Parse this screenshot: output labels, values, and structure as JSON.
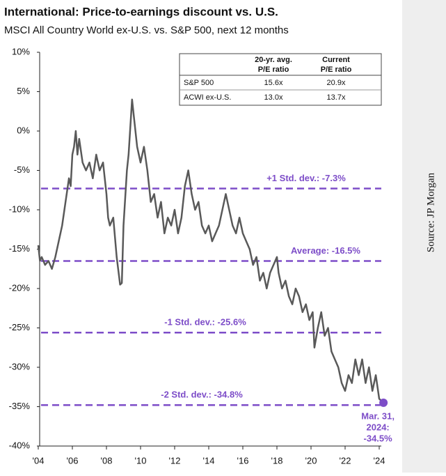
{
  "chart_data": {
    "type": "line",
    "title": "International: Price-to-earnings discount vs. U.S.",
    "subtitle": "MSCI All Country World ex-U.S. vs. S&P 500, next 12 months",
    "source": "Source:  JP Morgan",
    "xlim": [
      2004,
      2024
    ],
    "xticks": [
      {
        "value": 2004,
        "label": "'04"
      },
      {
        "value": 2006,
        "label": "'06"
      },
      {
        "value": 2008,
        "label": "'08"
      },
      {
        "value": 2010,
        "label": "'10"
      },
      {
        "value": 2012,
        "label": "'12"
      },
      {
        "value": 2014,
        "label": "'14"
      },
      {
        "value": 2016,
        "label": "'16"
      },
      {
        "value": 2018,
        "label": "'18"
      },
      {
        "value": 2020,
        "label": "'20"
      },
      {
        "value": 2022,
        "label": "'22"
      },
      {
        "value": 2024,
        "label": "'24"
      }
    ],
    "ylim": [
      -40,
      10
    ],
    "yticks": [
      {
        "value": 10,
        "label": "10%"
      },
      {
        "value": 5,
        "label": "5%"
      },
      {
        "value": 0,
        "label": "0%"
      },
      {
        "value": -5,
        "label": "-5%"
      },
      {
        "value": -10,
        "label": "-10%"
      },
      {
        "value": -15,
        "label": "-15%"
      },
      {
        "value": -20,
        "label": "-20%"
      },
      {
        "value": -25,
        "label": "-25%"
      },
      {
        "value": -30,
        "label": "-30%"
      },
      {
        "value": -35,
        "label": "-35%"
      },
      {
        "value": -40,
        "label": "-40%"
      }
    ],
    "series": [
      {
        "color": "#595959",
        "x": [
          2004.0,
          2004.1,
          2004.2,
          2004.4,
          2004.6,
          2004.8,
          2005.0,
          2005.2,
          2005.4,
          2005.6,
          2005.8,
          2005.9,
          2006.0,
          2006.1,
          2006.2,
          2006.3,
          2006.4,
          2006.6,
          2006.8,
          2007.0,
          2007.2,
          2007.4,
          2007.6,
          2007.8,
          2008.0,
          2008.1,
          2008.2,
          2008.4,
          2008.6,
          2008.8,
          2008.9,
          2009.0,
          2009.2,
          2009.3,
          2009.5,
          2009.6,
          2009.8,
          2010.0,
          2010.2,
          2010.4,
          2010.6,
          2010.8,
          2011.0,
          2011.2,
          2011.4,
          2011.6,
          2011.8,
          2012.0,
          2012.2,
          2012.4,
          2012.6,
          2012.8,
          2013.0,
          2013.2,
          2013.4,
          2013.6,
          2013.8,
          2014.0,
          2014.2,
          2014.4,
          2014.6,
          2014.8,
          2015.0,
          2015.2,
          2015.4,
          2015.6,
          2015.8,
          2016.0,
          2016.2,
          2016.4,
          2016.6,
          2016.8,
          2017.0,
          2017.2,
          2017.4,
          2017.6,
          2017.8,
          2018.0,
          2018.1,
          2018.3,
          2018.5,
          2018.7,
          2018.9,
          2019.1,
          2019.3,
          2019.5,
          2019.7,
          2019.9,
          2020.1,
          2020.2,
          2020.4,
          2020.6,
          2020.8,
          2021.0,
          2021.2,
          2021.4,
          2021.6,
          2021.8,
          2022.0,
          2022.2,
          2022.4,
          2022.6,
          2022.8,
          2023.0,
          2023.2,
          2023.4,
          2023.6,
          2023.8,
          2024.0,
          2024.25
        ],
        "values": [
          -14.5,
          -16.5,
          -16,
          -17,
          -16.5,
          -17.5,
          -16,
          -14,
          -12,
          -9,
          -6,
          -7,
          -3,
          -2,
          0,
          -3,
          -1,
          -4,
          -5,
          -4,
          -6,
          -3,
          -5,
          -4,
          -8,
          -11,
          -12,
          -11,
          -16,
          -19.5,
          -19.3,
          -12,
          -5,
          -3,
          4,
          2,
          -2,
          -4,
          -2,
          -5,
          -9,
          -8,
          -11,
          -9,
          -13,
          -11,
          -12,
          -10,
          -13,
          -11,
          -7,
          -5,
          -8,
          -10,
          -9,
          -12,
          -13,
          -12,
          -14,
          -13,
          -12,
          -10,
          -8,
          -10,
          -12,
          -13,
          -11,
          -13,
          -14,
          -15,
          -17,
          -16,
          -19,
          -18,
          -20,
          -18,
          -17,
          -16,
          -18,
          -20,
          -19,
          -21,
          -22,
          -20,
          -21,
          -23,
          -22,
          -24,
          -23,
          -27.5,
          -25,
          -23,
          -26,
          -25,
          -28,
          -29,
          -30,
          -32,
          -33,
          -31,
          -32,
          -29,
          -31,
          -29,
          -32,
          -30,
          -33,
          -31,
          -34,
          -34.5
        ]
      }
    ],
    "reference_lines": [
      {
        "label": "+1 Std. dev.: -7.3%",
        "value": -7.3
      },
      {
        "label": "Average: -16.5%",
        "value": -16.5
      },
      {
        "label": "-1 Std. dev.: -25.6%",
        "value": -25.6
      },
      {
        "label": "-2 Std. dev.: -34.8%",
        "value": -34.8
      }
    ],
    "reference_color": "#7d4dc8",
    "end_annotation": [
      "Mar. 31,",
      "2024:",
      "-34.5%"
    ],
    "table": {
      "header": [
        [
          "20-yr. avg.",
          "P/E ratio"
        ],
        [
          "Current",
          "P/E ratio"
        ]
      ],
      "rows": [
        [
          "S&P 500",
          "15.6x",
          "20.9x"
        ],
        [
          "ACWI ex-U.S.",
          "13.0x",
          "13.7x"
        ]
      ]
    }
  }
}
